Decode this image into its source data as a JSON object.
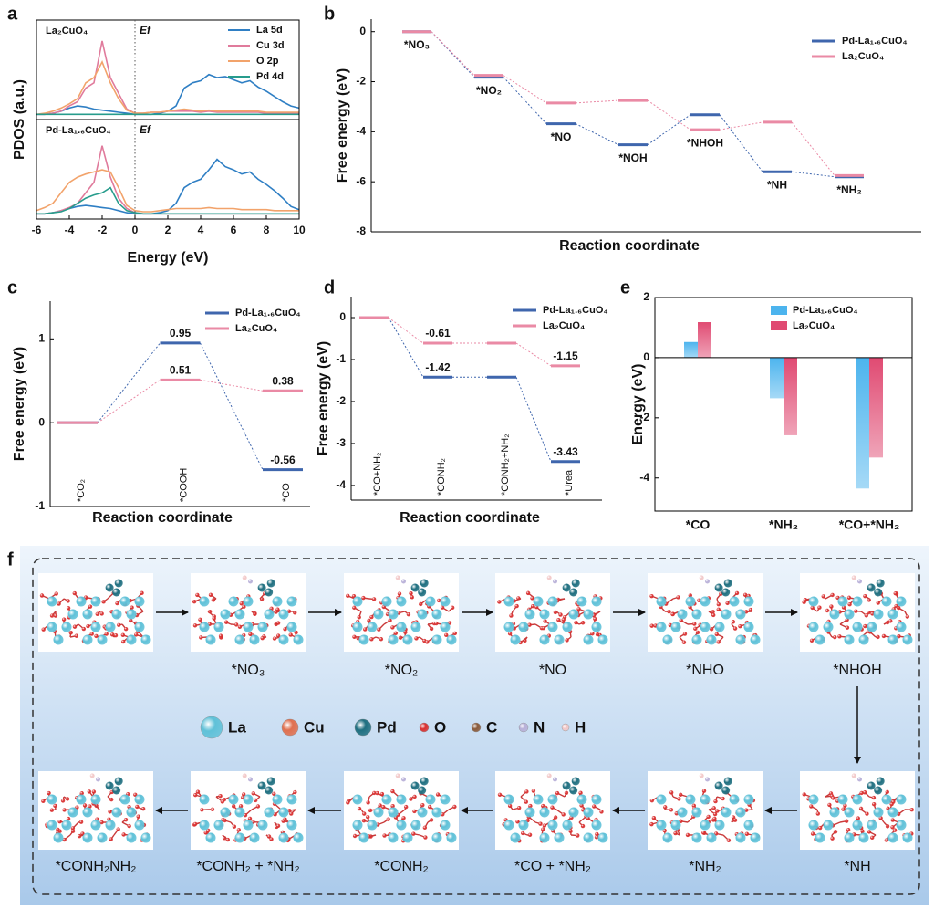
{
  "chart_data": [
    {
      "panel": "a",
      "type": "line",
      "xlabel": "Energy (eV)",
      "ylabel": "PDOS (a.u.)",
      "fermi_label": "Ef",
      "x": [
        -6,
        -5.5,
        -5,
        -4.5,
        -4,
        -3.5,
        -3,
        -2.5,
        -2,
        -1.5,
        -1,
        -0.5,
        0,
        0.5,
        1,
        1.5,
        2,
        2.5,
        3,
        3.5,
        4,
        4.5,
        5,
        5.5,
        6,
        6.5,
        7,
        7.5,
        8,
        8.5,
        9,
        9.5,
        10
      ],
      "xlim": [
        -6,
        10
      ],
      "xticks": [
        -6,
        -4,
        -2,
        0,
        2,
        4,
        6,
        8,
        10
      ],
      "ylim": [
        -0.5,
        9
      ],
      "legend": [
        {
          "name": "La 5d",
          "color": "#2f7fc4"
        },
        {
          "name": "Cu 3d",
          "color": "#e07b9c"
        },
        {
          "name": "O 2p",
          "color": "#f2a36b"
        },
        {
          "name": "Pd 4d",
          "color": "#279c8c"
        }
      ],
      "panels": [
        {
          "title": "La₂CuO₄",
          "series": [
            {
              "values": [
                0,
                0,
                0.1,
                0.3,
                0.6,
                0.8,
                0.7,
                0.5,
                0.4,
                0.3,
                0.2,
                0.1,
                0,
                0,
                0,
                0.1,
                0.3,
                0.8,
                2.5,
                3,
                3.2,
                3.8,
                3.5,
                3.6,
                3.3,
                3,
                3.2,
                2.6,
                2.2,
                1.7,
                1.2,
                0.8,
                0.6
              ]
            },
            {
              "values": [
                0,
                0,
                0.1,
                0.3,
                0.8,
                1.2,
                2.5,
                3,
                7,
                3.5,
                2,
                0.5,
                0.1,
                0.1,
                0.2,
                0.2,
                0.3,
                0.3,
                0.3,
                0.3,
                0.2,
                0.3,
                0.2,
                0.2,
                0.2,
                0.2,
                0.2,
                0.2,
                0.1,
                0.1,
                0.1,
                0.1,
                0.1
              ]
            },
            {
              "values": [
                0,
                0.1,
                0.3,
                0.6,
                1,
                1.5,
                3,
                3.5,
                5,
                3,
                1.5,
                0.4,
                0.1,
                0.1,
                0.2,
                0.2,
                0.3,
                0.4,
                0.5,
                0.4,
                0.3,
                0.4,
                0.3,
                0.3,
                0.3,
                0.3,
                0.3,
                0.3,
                0.2,
                0.2,
                0.2,
                0.2,
                0.2
              ]
            },
            {
              "values": [
                0,
                0,
                0,
                0,
                0,
                0,
                0,
                0,
                0,
                0,
                0,
                0,
                0,
                0,
                0,
                0,
                0,
                0,
                0,
                0,
                0,
                0,
                0,
                0,
                0,
                0,
                0,
                0,
                0,
                0,
                0,
                0,
                0
              ]
            }
          ]
        },
        {
          "title": "Pd-La₁.₆CuO₄",
          "series": [
            {
              "values": [
                0,
                0,
                0.1,
                0.3,
                0.5,
                0.7,
                0.8,
                0.7,
                0.6,
                0.5,
                0.3,
                0.1,
                0,
                0,
                0,
                0.1,
                0.3,
                1,
                2.5,
                3,
                3.3,
                4.2,
                5.2,
                4.5,
                4.2,
                3.8,
                4,
                3.3,
                2.8,
                2.2,
                1.5,
                0.7,
                0.4
              ]
            },
            {
              "values": [
                0,
                0,
                0.1,
                0.3,
                0.6,
                1,
                2,
                3,
                6.5,
                3.5,
                1.5,
                0.5,
                0.1,
                0,
                0,
                0,
                0,
                0,
                0,
                0,
                0,
                0,
                0,
                0,
                0,
                0,
                0,
                0,
                0,
                0,
                0,
                0,
                0
              ]
            },
            {
              "values": [
                0.3,
                0.6,
                1,
                2,
                3,
                3.5,
                3.8,
                4,
                4.2,
                4,
                2.5,
                0.8,
                0.3,
                0.2,
                0.2,
                0.3,
                0.4,
                0.5,
                0.5,
                0.5,
                0.5,
                0.6,
                0.5,
                0.5,
                0.5,
                0.4,
                0.4,
                0.4,
                0.4,
                0.3,
                0.3,
                0.3,
                0.3
              ]
            },
            {
              "values": [
                0,
                0,
                0.1,
                0.2,
                0.5,
                1,
                1.5,
                1.8,
                2,
                2.5,
                1,
                0.3,
                0.1,
                0,
                0,
                0,
                0,
                0,
                0,
                0,
                0,
                0,
                0,
                0,
                0,
                0,
                0,
                0,
                0,
                0,
                0,
                0,
                0
              ]
            }
          ]
        }
      ]
    },
    {
      "panel": "b",
      "type": "step",
      "xlabel": "Reaction coordinate",
      "ylabel": "Free energy (eV)",
      "categories": [
        "*NO₃",
        "*NO₂",
        "*NO",
        "*NOH",
        "*NHOH",
        "*NH",
        "*NH₂"
      ],
      "ylim": [
        -8,
        0.5
      ],
      "yticks": [
        -8,
        -6,
        -4,
        -2,
        0
      ],
      "series": [
        {
          "name": "Pd-La₁.₆CuO₄",
          "color": "#3f66ad",
          "values": [
            0,
            -1.82,
            -3.68,
            -4.52,
            -3.32,
            -5.6,
            -5.8
          ]
        },
        {
          "name": "La₂CuO₄",
          "color": "#ea8aa5",
          "values": [
            0,
            -1.75,
            -2.85,
            -2.75,
            -3.92,
            -3.62,
            -5.75
          ]
        }
      ]
    },
    {
      "panel": "c",
      "type": "step",
      "xlabel": "Reaction coordinate",
      "ylabel": "Free energy (eV)",
      "categories": [
        "*CO₂",
        "*COOH",
        "*CO"
      ],
      "ylim": [
        -1,
        1.45
      ],
      "yticks": [
        -1,
        0,
        1
      ],
      "series": [
        {
          "name": "Pd-La₁.₆CuO₄",
          "color": "#3f66ad",
          "values": [
            0,
            0.95,
            -0.56
          ],
          "value_labels": [
            null,
            "0.95",
            "-0.56"
          ]
        },
        {
          "name": "La₂CuO₄",
          "color": "#ea8aa5",
          "values": [
            0,
            0.51,
            0.38
          ],
          "value_labels": [
            null,
            "0.51",
            "0.38"
          ]
        }
      ]
    },
    {
      "panel": "d",
      "type": "step",
      "xlabel": "Reaction coordinate",
      "ylabel": "Free energy (eV)",
      "categories": [
        "*CO+NH₂",
        "*CONH₂",
        "*CONH₂+NH₂",
        "*Urea"
      ],
      "ylim": [
        -4.35,
        0.5
      ],
      "yticks": [
        -4,
        -3,
        -2,
        -1,
        0
      ],
      "series": [
        {
          "name": "Pd-La₁.₆CuO₄",
          "color": "#3f66ad",
          "values": [
            0,
            -1.42,
            -1.42,
            -3.43
          ],
          "value_labels": [
            null,
            "-1.42",
            null,
            "-3.43"
          ]
        },
        {
          "name": "La₂CuO₄",
          "color": "#ea8aa5",
          "values": [
            0,
            -0.61,
            -0.61,
            -1.15
          ],
          "value_labels": [
            null,
            "-0.61",
            null,
            "-1.15"
          ]
        }
      ]
    },
    {
      "panel": "e",
      "type": "bar",
      "ylabel": "Energy (eV)",
      "categories": [
        "*CO",
        "*NH₂",
        "*CO+*NH₂"
      ],
      "ylim": [
        -5.1,
        2
      ],
      "yticks": [
        -4,
        -2,
        0,
        2
      ],
      "series": [
        {
          "name": "Pd-La₁.₆CuO₄",
          "color": "#4cb4ee",
          "values": [
            0.52,
            -1.35,
            -4.35
          ]
        },
        {
          "name": "La₂CuO₄",
          "color": "#e04a72",
          "values": [
            1.18,
            -2.58,
            -3.32
          ]
        }
      ]
    }
  ],
  "scheme": {
    "panel": "f",
    "states": [
      "*NO₃",
      "*NO₂",
      "*NO",
      "*NHO",
      "*NHOH",
      "*NH",
      "*NH₂",
      "*CO + *NH₂",
      "*CONH₂",
      "*CONH₂ + *NH₂",
      "*CONH₂NH₂"
    ],
    "elements": [
      {
        "name": "La",
        "color": "#5fc1d8"
      },
      {
        "name": "Cu",
        "color": "#e0704f"
      },
      {
        "name": "Pd",
        "color": "#1f6f80"
      },
      {
        "name": "O",
        "color": "#d93030"
      },
      {
        "name": "C",
        "color": "#8a5a3a"
      },
      {
        "name": "N",
        "color": "#b8b0d8"
      },
      {
        "name": "H",
        "color": "#f2c8c8"
      }
    ]
  }
}
